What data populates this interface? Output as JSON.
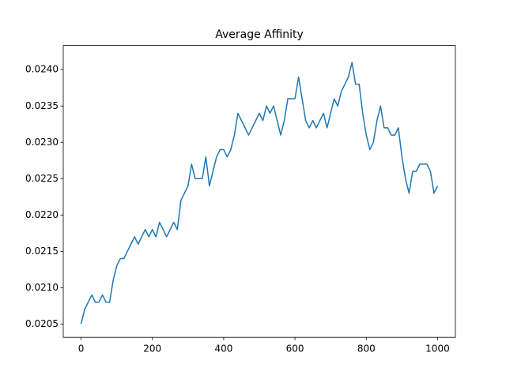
{
  "chart_data": {
    "type": "line",
    "title": "Average Affinity",
    "x": [
      0,
      10,
      20,
      30,
      40,
      50,
      60,
      70,
      80,
      90,
      100,
      110,
      120,
      130,
      140,
      150,
      160,
      170,
      180,
      190,
      200,
      210,
      220,
      230,
      240,
      250,
      260,
      270,
      280,
      290,
      300,
      310,
      320,
      330,
      340,
      350,
      360,
      370,
      380,
      390,
      400,
      410,
      420,
      430,
      440,
      450,
      460,
      470,
      480,
      490,
      500,
      510,
      520,
      530,
      540,
      550,
      560,
      570,
      580,
      590,
      600,
      610,
      620,
      630,
      640,
      650,
      660,
      670,
      680,
      690,
      700,
      710,
      720,
      730,
      740,
      750,
      760,
      770,
      780,
      790,
      800,
      810,
      820,
      830,
      840,
      850,
      860,
      870,
      880,
      890,
      900,
      910,
      920,
      930,
      940,
      950,
      960,
      970,
      980,
      990,
      1000
    ],
    "series": [
      {
        "color": "#1f77b4",
        "values": [
          0.0205,
          0.0207,
          0.0208,
          0.0209,
          0.0208,
          0.0208,
          0.0209,
          0.0208,
          0.0208,
          0.0211,
          0.0213,
          0.0214,
          0.0214,
          0.0215,
          0.0216,
          0.0217,
          0.0216,
          0.0217,
          0.0218,
          0.0217,
          0.0218,
          0.0217,
          0.0219,
          0.0218,
          0.0217,
          0.0218,
          0.0219,
          0.0218,
          0.0222,
          0.0223,
          0.0224,
          0.0227,
          0.0225,
          0.0225,
          0.0225,
          0.0228,
          0.0224,
          0.0226,
          0.0228,
          0.0229,
          0.0229,
          0.0228,
          0.0229,
          0.0231,
          0.0234,
          0.0233,
          0.0232,
          0.0231,
          0.0232,
          0.0233,
          0.0234,
          0.0233,
          0.0235,
          0.0234,
          0.0235,
          0.0233,
          0.0231,
          0.0233,
          0.0236,
          0.0236,
          0.0236,
          0.0239,
          0.0236,
          0.0233,
          0.0232,
          0.0233,
          0.0232,
          0.0233,
          0.0234,
          0.0232,
          0.0234,
          0.0236,
          0.0235,
          0.0237,
          0.0238,
          0.0239,
          0.0241,
          0.0238,
          0.0238,
          0.0234,
          0.0231,
          0.0229,
          0.023,
          0.0233,
          0.0235,
          0.0232,
          0.0232,
          0.0231,
          0.0231,
          0.0232,
          0.0228,
          0.0225,
          0.0223,
          0.0226,
          0.0226,
          0.0227,
          0.0227,
          0.0227,
          0.0226,
          0.0223,
          0.0224
        ]
      }
    ],
    "xlim": [
      -50,
      1050
    ],
    "ylim": [
      0.020317,
      0.024333
    ],
    "xticks": [
      0,
      200,
      400,
      600,
      800,
      1000
    ],
    "yticks": [
      0.0205,
      {
        "value": 0.021,
        "label": "0.0210"
      },
      0.0215,
      {
        "value": 0.022,
        "label": "0.0220"
      },
      0.0225,
      {
        "value": 0.023,
        "label": "0.0230"
      },
      0.0235,
      {
        "value": 0.024,
        "label": "0.0240"
      }
    ]
  }
}
